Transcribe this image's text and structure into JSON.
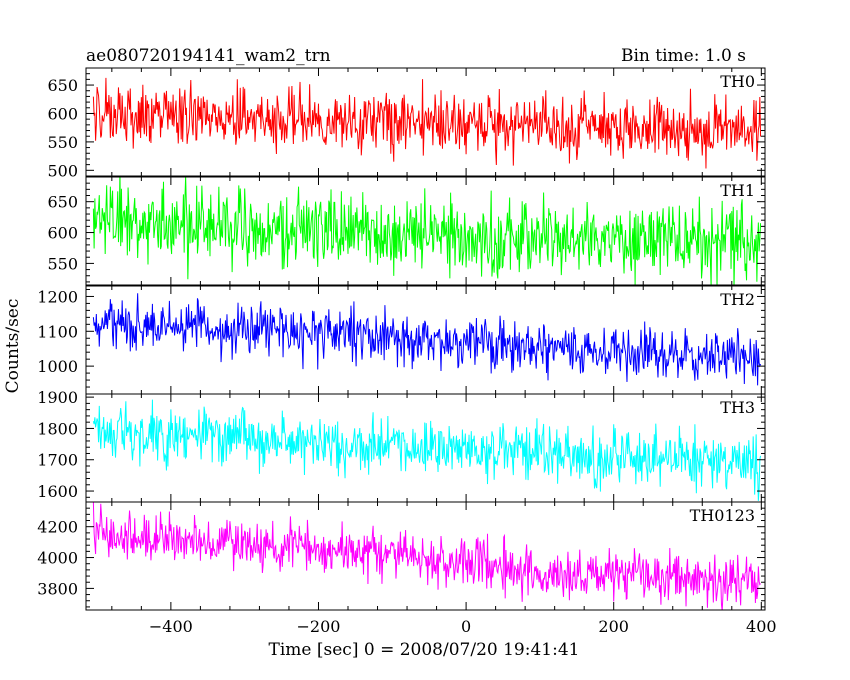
{
  "header": {
    "title": "ae080720194141_wam2_trn",
    "bin_time": "Bin time: 1.0 s"
  },
  "chart_data": {
    "type": "line",
    "title": "ae080720194141_wam2_trn",
    "subtitle": "Bin time: 1.0 s",
    "xlabel": "Time [sec] 0 = 2008/07/20 19:41:41",
    "ylabel": "Counts/sec",
    "xlim": [
      -515,
      405
    ],
    "x_ticks": [
      -400,
      -200,
      0,
      200,
      400
    ],
    "x_tick_labels": [
      "−400",
      "−200",
      "0",
      "200",
      "400"
    ],
    "bin_time_s": 1.0,
    "x_start": -505,
    "x_end": 399,
    "panels": [
      {
        "name": "TH0",
        "color": "#ff0000",
        "ylim": [
          490,
          680
        ],
        "y_ticks": [
          500,
          550,
          600,
          650
        ],
        "trend": [
          [
            -505,
            600
          ],
          [
            -300,
            592
          ],
          [
            -100,
            585
          ],
          [
            100,
            578
          ],
          [
            400,
            570
          ]
        ],
        "noise_amplitude": 28
      },
      {
        "name": "TH1",
        "color": "#00ff00",
        "ylim": [
          515,
          690
        ],
        "y_ticks": [
          550,
          600,
          650
        ],
        "trend": [
          [
            -505,
            620
          ],
          [
            -300,
            610
          ],
          [
            -100,
            600
          ],
          [
            100,
            590
          ],
          [
            400,
            585
          ]
        ],
        "noise_amplitude": 30
      },
      {
        "name": "TH2",
        "color": "#0000ff",
        "ylim": [
          920,
          1230
        ],
        "y_ticks": [
          1000,
          1100,
          1200
        ],
        "trend": [
          [
            -505,
            1125
          ],
          [
            -300,
            1105
          ],
          [
            -100,
            1085
          ],
          [
            100,
            1055
          ],
          [
            400,
            1020
          ]
        ],
        "noise_amplitude": 36
      },
      {
        "name": "TH3",
        "color": "#00ffff",
        "ylim": [
          1565,
          1910
        ],
        "y_ticks": [
          1600,
          1700,
          1800,
          1900
        ],
        "trend": [
          [
            -505,
            1795
          ],
          [
            -300,
            1765
          ],
          [
            -100,
            1745
          ],
          [
            100,
            1725
          ],
          [
            400,
            1690
          ]
        ],
        "noise_amplitude": 45
      },
      {
        "name": "TH0123",
        "color": "#ff00ff",
        "ylim": [
          3660,
          4360
        ],
        "y_ticks": [
          3800,
          4000,
          4200
        ],
        "trend": [
          [
            -505,
            4160
          ],
          [
            -300,
            4080
          ],
          [
            -100,
            4010
          ],
          [
            100,
            3910
          ],
          [
            400,
            3840
          ]
        ],
        "noise_amplitude": 80
      }
    ]
  }
}
